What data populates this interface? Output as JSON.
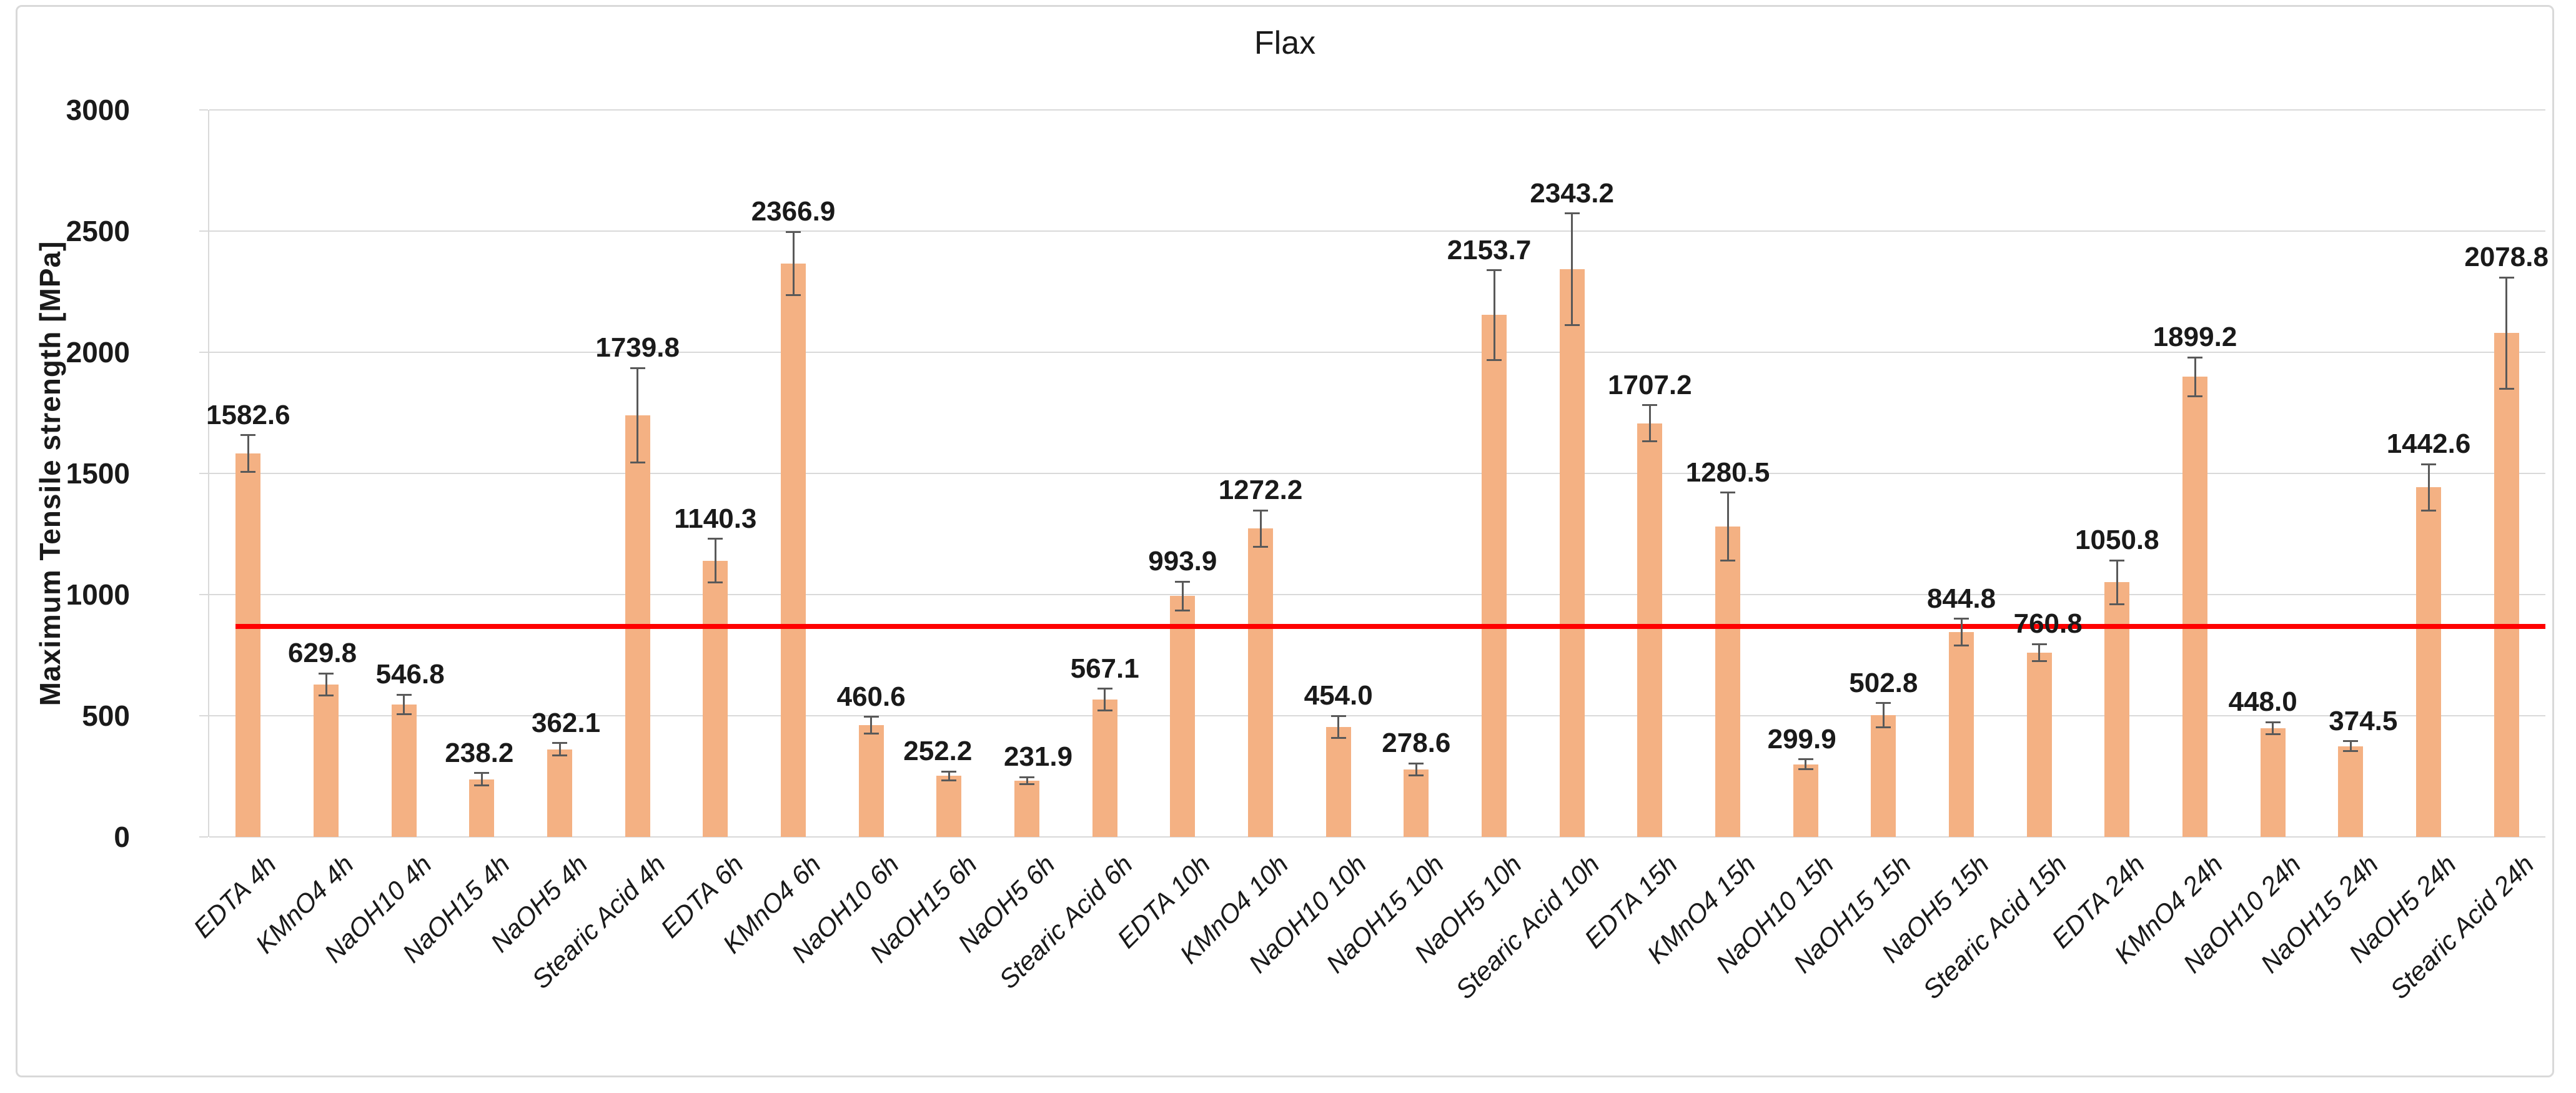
{
  "chart_data": {
    "type": "bar",
    "title": "Flax",
    "ylabel": "Maximum Tensile strength [MPa]",
    "xlabel": "",
    "ylim": [
      0,
      3000
    ],
    "yticks": [
      0,
      500,
      1000,
      1500,
      2000,
      2500,
      3000
    ],
    "grid": true,
    "legend": "none",
    "bar_color": "#F4B183",
    "error_bar_color": "#595959",
    "gridline_color": "#D9D9D9",
    "categories": [
      "EDTA 4h",
      "KMnO4 4h",
      "NaOH10 4h",
      "NaOH15 4h",
      "NaOH5 4h",
      "Stearic Acid 4h",
      "EDTA 6h",
      "KMnO4 6h",
      "NaOH10 6h",
      "NaOH15 6h",
      "NaOH5 6h",
      "Stearic Acid 6h",
      "EDTA 10h",
      "KMnO4 10h",
      "NaOH10 10h",
      "NaOH15 10h",
      "NaOH5 10h",
      "Stearic Acid 10h",
      "EDTA 15h",
      "KMnO4 15h",
      "NaOH10 15h",
      "NaOH15 15h",
      "NaOH5 15h",
      "Stearic Acid 15h",
      "EDTA 24h",
      "KMnO4 24h",
      "NaOH10 24h",
      "NaOH15 24h",
      "NaOH5 24h",
      "Stearic Acid 24h"
    ],
    "values": [
      1582.6,
      629.8,
      546.8,
      238.2,
      362.1,
      1739.8,
      1140.3,
      2366.9,
      460.6,
      252.2,
      231.9,
      567.1,
      993.9,
      1272.2,
      454.0,
      278.6,
      2153.7,
      2343.2,
      1707.2,
      1280.5,
      299.9,
      502.8,
      844.8,
      760.8,
      1050.8,
      1899.2,
      448.0,
      374.5,
      1442.6,
      2078.8
    ],
    "errors_est": [
      75,
      45,
      40,
      25,
      25,
      195,
      90,
      130,
      35,
      18,
      15,
      45,
      60,
      75,
      45,
      25,
      185,
      230,
      75,
      140,
      20,
      50,
      55,
      35,
      90,
      80,
      25,
      20,
      95,
      230
    ],
    "label_dx": [
      0,
      -6,
      10,
      -4,
      10,
      0,
      0,
      0,
      0,
      -18,
      18,
      0,
      0,
      0,
      0,
      0,
      -8,
      0,
      0,
      0,
      -6,
      0,
      0,
      14,
      0,
      0,
      -16,
      20,
      0,
      0
    ],
    "reference_line": {
      "value": 868,
      "color": "#FF0000"
    }
  }
}
